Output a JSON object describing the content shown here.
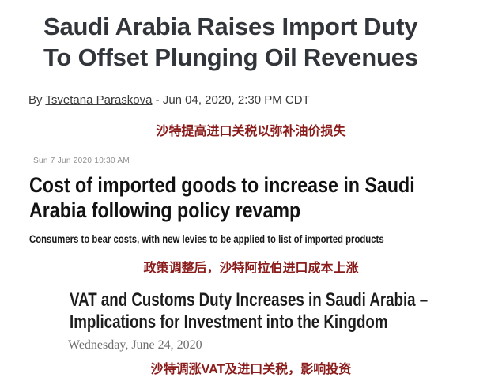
{
  "page": {
    "background_color": "#ffffff",
    "annotation_color": "#8b1c1c"
  },
  "article1": {
    "title": "Saudi Arabia Raises Import Duty\nTo Offset Plunging Oil Revenues",
    "title_color": "#32363b",
    "byline_prefix": "By ",
    "author": "Tsvetana Paraskova",
    "byline_suffix": " - Jun 04, 2020, 2:30 PM CDT"
  },
  "annotation1": {
    "text": "沙特提高进口关税以弥补油价损失"
  },
  "article2": {
    "timestamp": "Sun 7 Jun 2020 10:30 AM",
    "title": "Cost of imported goods to increase in Saudi\nArabia following policy revamp",
    "subtitle": "Consumers to bear costs, with new levies to be applied to list of imported products"
  },
  "annotation2": {
    "text": "政策调整后，沙特阿拉伯进口成本上涨"
  },
  "article3": {
    "title": "VAT and Customs Duty Increases in Saudi Arabia –\nImplications for Investment into the Kingdom",
    "date": "Wednesday, June 24, 2020"
  },
  "annotation3": {
    "text": "沙特调涨VAT及进口关税，影响投资"
  }
}
